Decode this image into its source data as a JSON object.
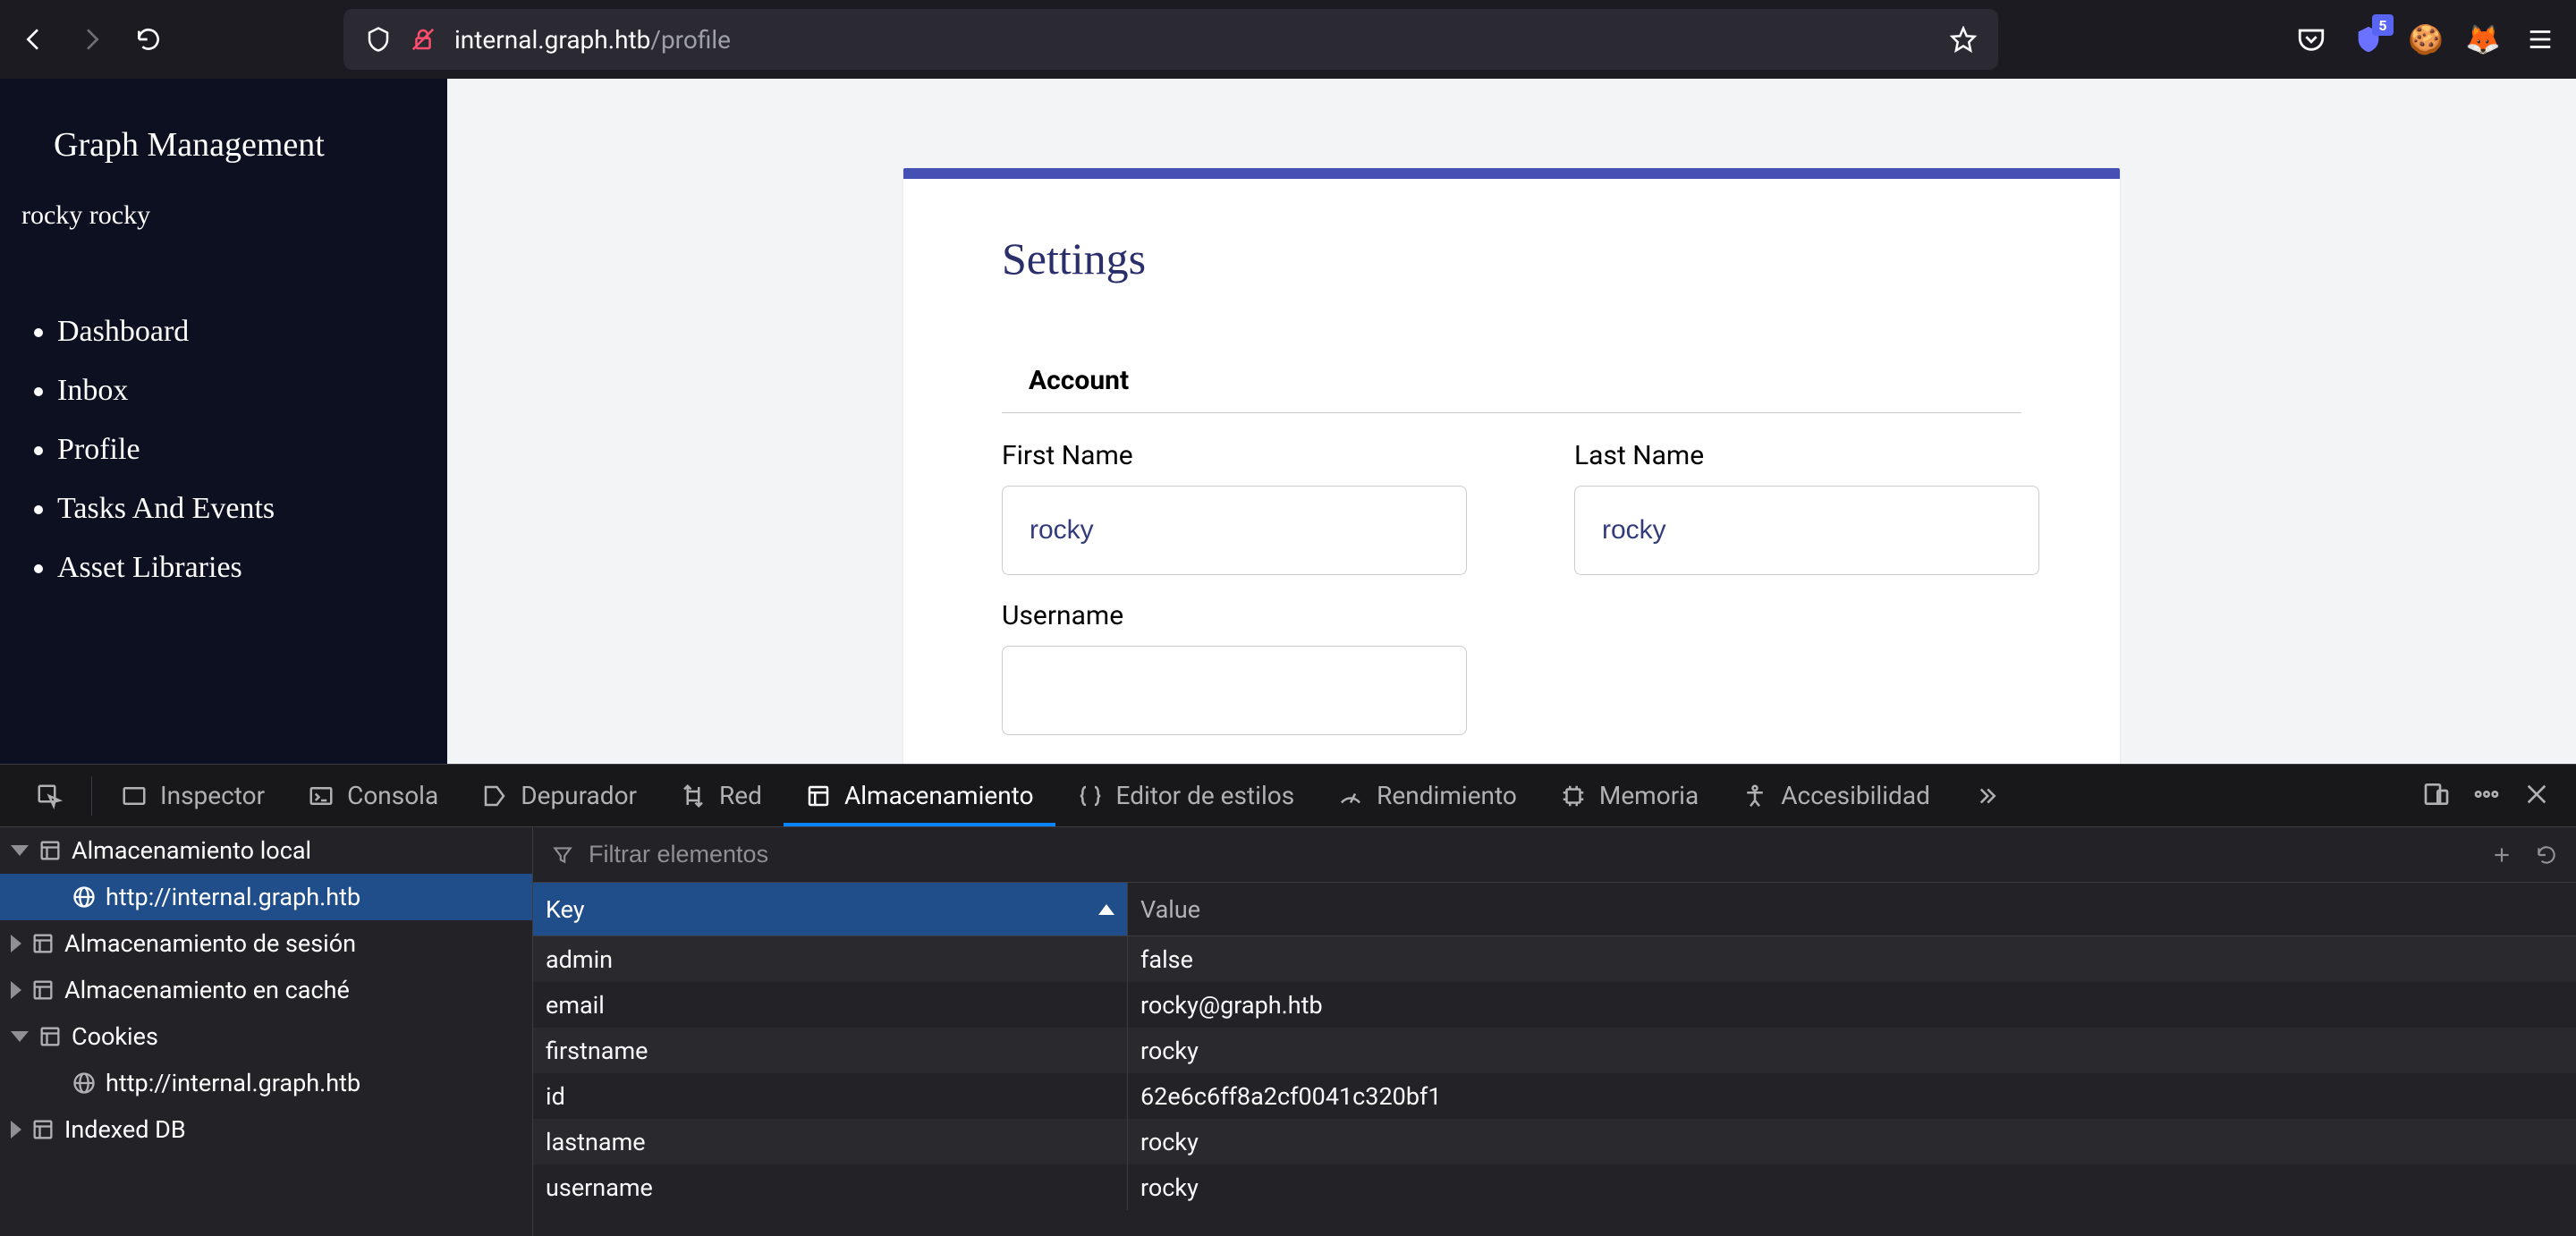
{
  "browser": {
    "url_host": "internal.graph.htb",
    "url_path": "/profile",
    "badge_count": "5"
  },
  "sidebar": {
    "title": "Graph Management",
    "user": "rocky rocky",
    "nav": [
      "Dashboard",
      "Inbox",
      "Profile",
      "Tasks And Events",
      "Asset Libraries"
    ]
  },
  "settings": {
    "title": "Settings",
    "section": "Account",
    "first_name_label": "First Name",
    "last_name_label": "Last Name",
    "username_label": "Username",
    "first_name": "rocky",
    "last_name": "rocky",
    "username": ""
  },
  "devtools": {
    "tabs": {
      "inspector": "Inspector",
      "console": "Consola",
      "debugger": "Depurador",
      "network": "Red",
      "storage": "Almacenamiento",
      "style": "Editor de estilos",
      "performance": "Rendimiento",
      "memory": "Memoria",
      "accessibility": "Accesibilidad"
    },
    "tree": {
      "local_storage": "Almacenamiento local",
      "origin": "http://internal.graph.htb",
      "session_storage": "Almacenamiento de sesión",
      "cache_storage": "Almacenamiento en caché",
      "cookies": "Cookies",
      "cookies_origin": "http://internal.graph.htb",
      "indexed_db": "Indexed DB"
    },
    "filter_placeholder": "Filtrar elementos",
    "columns": {
      "key": "Key",
      "value": "Value"
    },
    "rows": [
      {
        "k": "admin",
        "v": "false"
      },
      {
        "k": "email",
        "v": "rocky@graph.htb"
      },
      {
        "k": "firstname",
        "v": "rocky"
      },
      {
        "k": "id",
        "v": "62e6c6ff8a2cf0041c320bf1"
      },
      {
        "k": "lastname",
        "v": "rocky"
      },
      {
        "k": "username",
        "v": "rocky"
      }
    ]
  },
  "colors": {
    "browser_bg": "#1c1b22",
    "urlbar_bg": "#2b2a33",
    "sidebar_bg": "#0c1020",
    "page_bg": "#f3f4f6",
    "card_border": "#4550b5",
    "title_color": "#2a2f6b",
    "devtools_bg": "#232327",
    "devtools_tabbar": "#18181a",
    "active_tab": "#0a84ff",
    "selected": "#204e8a",
    "row_alt": "#2a2a2e"
  }
}
